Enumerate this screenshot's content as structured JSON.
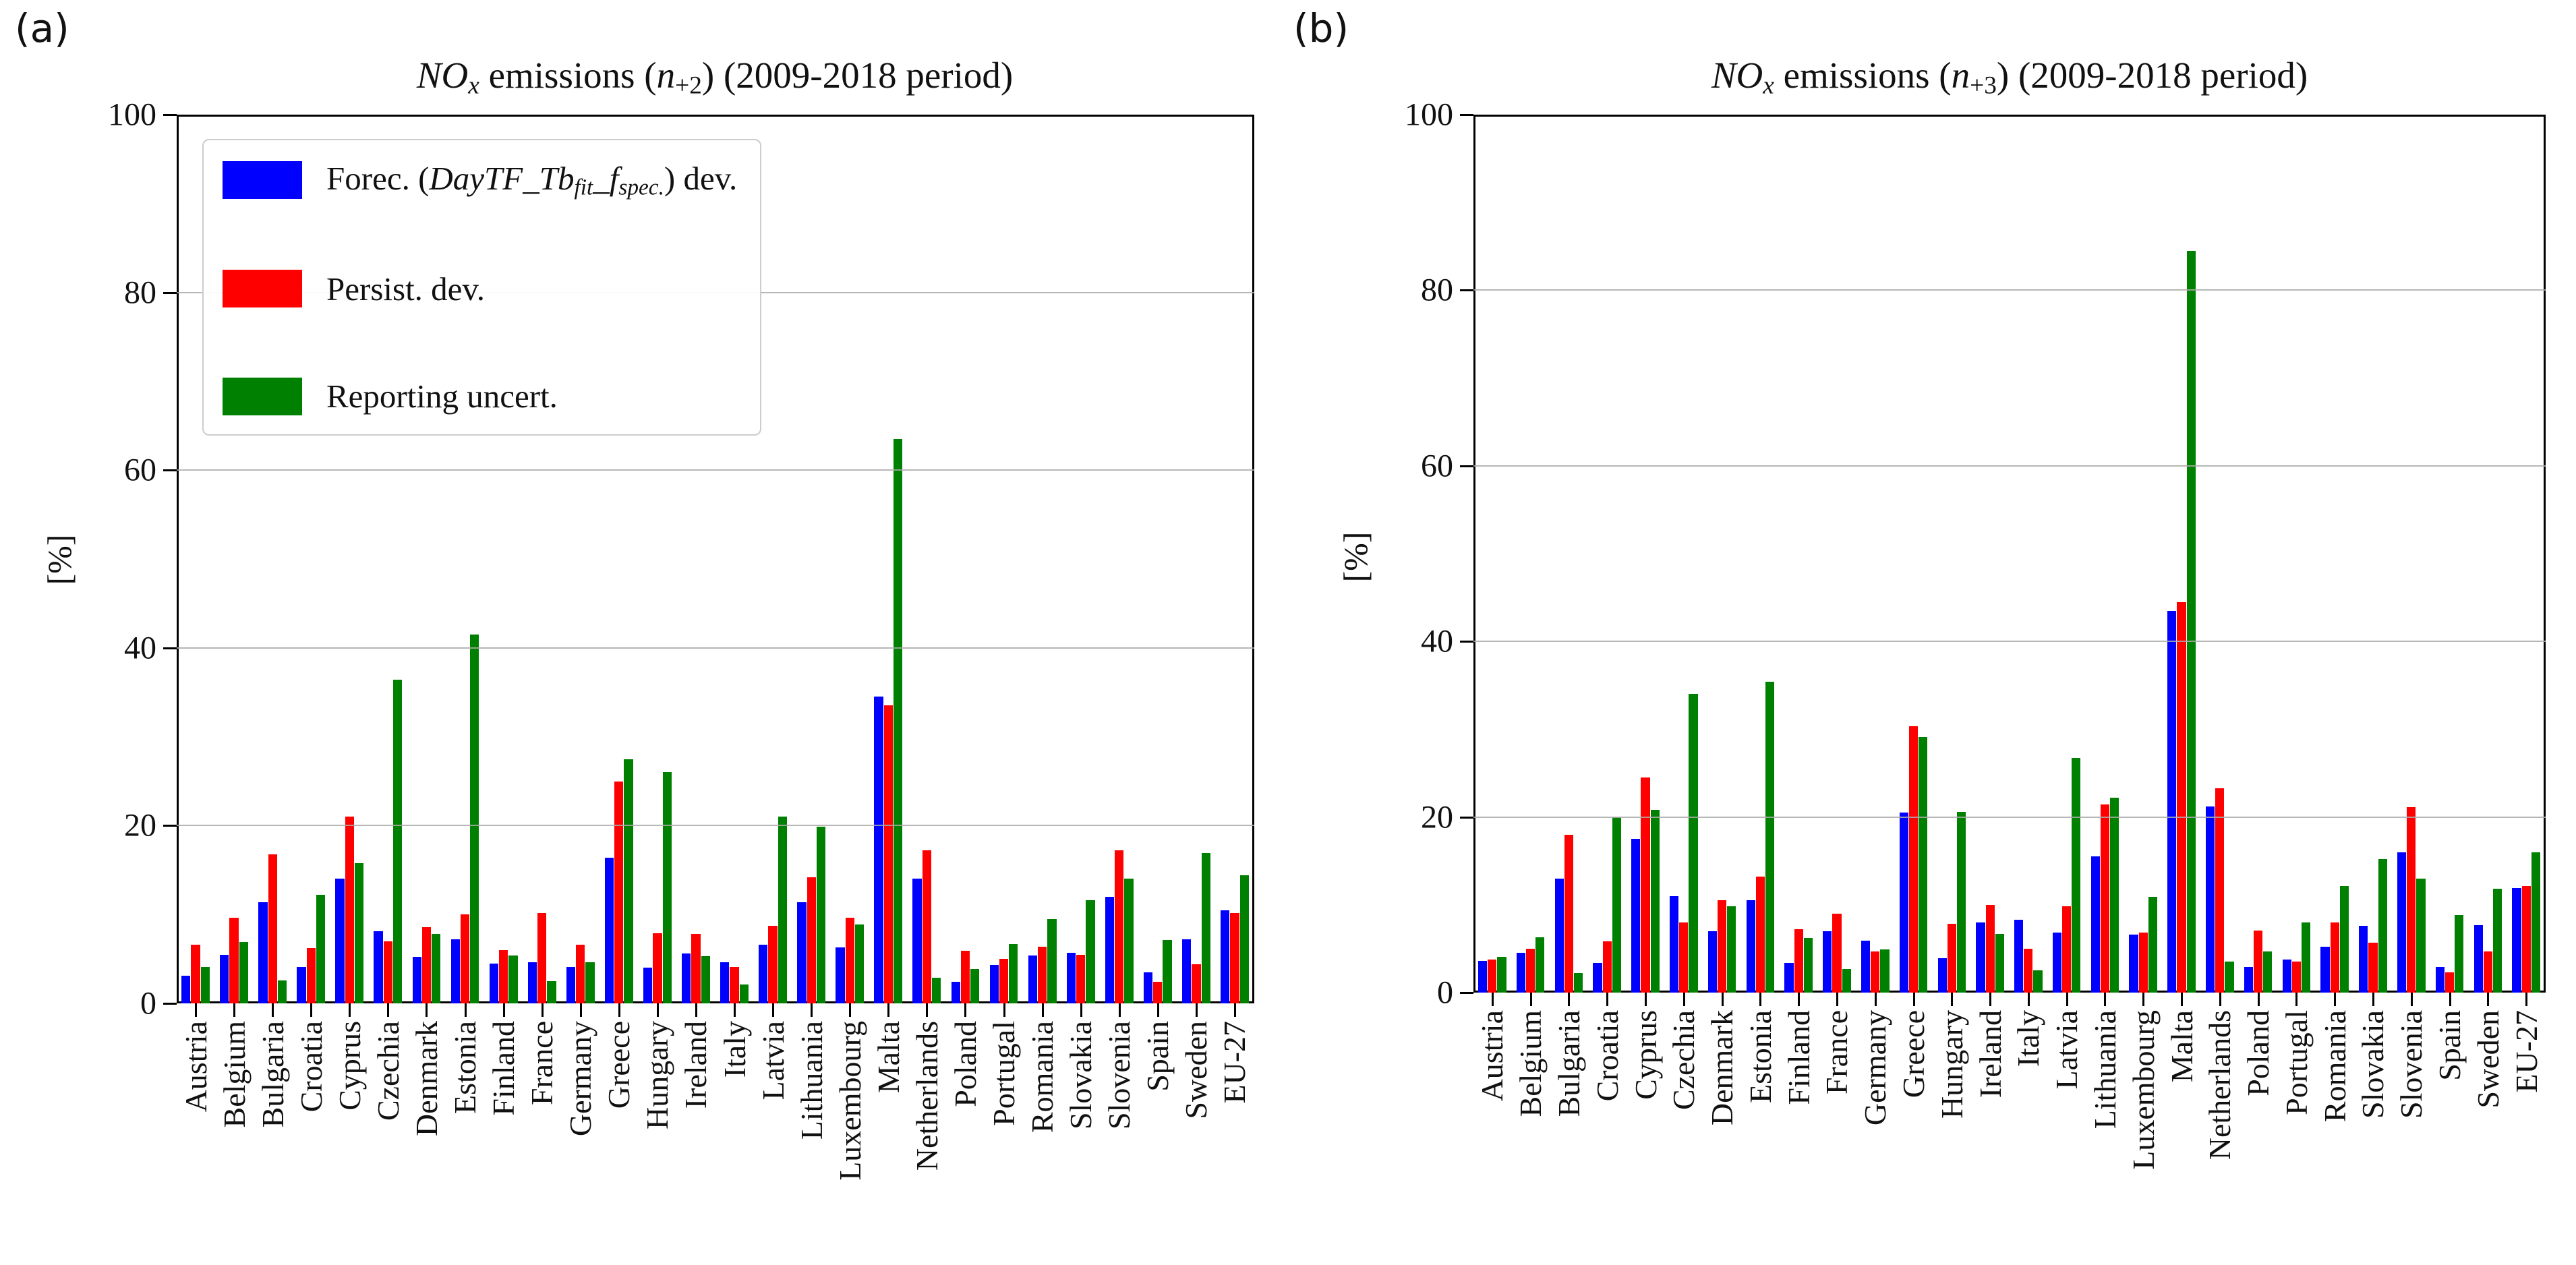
{
  "figure": {
    "background": "#ffffff",
    "panel_labels": [
      "(a)",
      "(b)"
    ]
  },
  "colors": {
    "forecast_blue": "#0000ff",
    "persistence_red": "#ff0000",
    "reporting_green": "#008000",
    "grid_gray": "#aaaaaa",
    "axis_black": "#000000"
  },
  "chart_data": [
    {
      "type": "bar",
      "panel_label": "(a)",
      "title": "NOx emissions (n+2) (2009-2018 period)",
      "title_segments": [
        {
          "t": "NO",
          "i": true
        },
        {
          "t": "x",
          "i": true,
          "sub": true
        },
        {
          "t": " emissions (",
          "i": false
        },
        {
          "t": "n",
          "i": true
        },
        {
          "t": "+2",
          "i": false,
          "sub": true
        },
        {
          "t": ") (2009-2018 period)",
          "i": false
        }
      ],
      "ylabel": "[%]",
      "ylim": [
        0,
        100
      ],
      "yticks": [
        0,
        20,
        40,
        60,
        80,
        100
      ],
      "grid": true,
      "legend_position": "upper left",
      "legend_visible": true,
      "categories": [
        "Austria",
        "Belgium",
        "Bulgaria",
        "Croatia",
        "Cyprus",
        "Czechia",
        "Denmark",
        "Estonia",
        "Finland",
        "France",
        "Germany",
        "Greece",
        "Hungary",
        "Ireland",
        "Italy",
        "Latvia",
        "Lithuania",
        "Luxembourg",
        "Malta",
        "Netherlands",
        "Poland",
        "Portugal",
        "Romania",
        "Slovakia",
        "Slovenia",
        "Spain",
        "Sweden",
        "EU-27"
      ],
      "series": [
        {
          "name": "Forec. (DayTF_Tbfit_fspec.) dev.",
          "name_segments": [
            {
              "t": "Forec. (",
              "i": false
            },
            {
              "t": "DayTF_Tb",
              "i": true
            },
            {
              "t": "fit",
              "i": true,
              "sub": true
            },
            {
              "t": "_f",
              "i": true
            },
            {
              "t": "spec.",
              "i": true,
              "sub": true
            },
            {
              "t": ") dev.",
              "i": false
            }
          ],
          "color": "#0000ff",
          "values": [
            3.1,
            5.5,
            11.4,
            4.1,
            14.0,
            8.1,
            5.2,
            7.2,
            4.5,
            4.6,
            4.1,
            16.4,
            4.0,
            5.6,
            4.6,
            6.6,
            11.4,
            6.3,
            34.5,
            14.0,
            2.4,
            4.3,
            5.4,
            5.7,
            12.0,
            3.5,
            7.2,
            10.5
          ]
        },
        {
          "name": "Persist. dev.",
          "name_segments": [
            {
              "t": "Persist. dev.",
              "i": false
            }
          ],
          "color": "#ff0000",
          "values": [
            6.6,
            9.6,
            16.8,
            6.2,
            21.0,
            7.0,
            8.6,
            10.0,
            6.0,
            10.2,
            6.6,
            25.0,
            7.9,
            7.8,
            4.1,
            8.7,
            14.2,
            9.6,
            33.5,
            17.2,
            5.9,
            5.0,
            6.4,
            5.5,
            17.2,
            2.4,
            4.4,
            10.2
          ]
        },
        {
          "name": "Reporting uncert.",
          "name_segments": [
            {
              "t": "Reporting uncert.",
              "i": false
            }
          ],
          "color": "#008000",
          "values": [
            4.1,
            6.9,
            2.6,
            12.2,
            15.8,
            36.4,
            7.8,
            41.5,
            5.4,
            2.5,
            4.6,
            27.5,
            26.0,
            5.3,
            2.1,
            21.0,
            19.9,
            8.9,
            63.5,
            2.9,
            3.9,
            6.7,
            9.5,
            11.6,
            14.0,
            7.1,
            16.9,
            14.4
          ]
        }
      ]
    },
    {
      "type": "bar",
      "panel_label": "(b)",
      "title": "NOx emissions (n+3) (2009-2018 period)",
      "title_segments": [
        {
          "t": "NO",
          "i": true
        },
        {
          "t": "x",
          "i": true,
          "sub": true
        },
        {
          "t": " emissions (",
          "i": false
        },
        {
          "t": "n",
          "i": true
        },
        {
          "t": "+3",
          "i": false,
          "sub": true
        },
        {
          "t": ") (2009-2018 period)",
          "i": false
        }
      ],
      "ylabel": "[%]",
      "ylim": [
        0,
        100
      ],
      "yticks": [
        0,
        20,
        40,
        60,
        80,
        100
      ],
      "grid": true,
      "legend_position": "none",
      "legend_visible": false,
      "categories": [
        "Austria",
        "Belgium",
        "Bulgaria",
        "Croatia",
        "Cyprus",
        "Czechia",
        "Denmark",
        "Estonia",
        "Finland",
        "France",
        "Germany",
        "Greece",
        "Hungary",
        "Ireland",
        "Italy",
        "Latvia",
        "Lithuania",
        "Luxembourg",
        "Malta",
        "Netherlands",
        "Poland",
        "Portugal",
        "Romania",
        "Slovakia",
        "Slovenia",
        "Spain",
        "Sweden",
        "EU-27"
      ],
      "series": [
        {
          "name": "Forec. (DayTF_Tbfit_fspec.) dev.",
          "name_segments": [
            {
              "t": "Forec. (",
              "i": false
            },
            {
              "t": "DayTF_Tb",
              "i": true
            },
            {
              "t": "fit",
              "i": true,
              "sub": true
            },
            {
              "t": "_f",
              "i": true
            },
            {
              "t": "spec.",
              "i": true,
              "sub": true
            },
            {
              "t": ") dev.",
              "i": false
            }
          ],
          "color": "#0000ff",
          "values": [
            3.6,
            4.5,
            13.0,
            3.4,
            17.5,
            11.0,
            7.0,
            10.5,
            3.4,
            7.0,
            5.9,
            20.5,
            3.9,
            8.0,
            8.3,
            6.8,
            15.5,
            6.6,
            43.5,
            21.2,
            2.9,
            3.8,
            5.2,
            7.6,
            16.0,
            2.9,
            7.7,
            11.9
          ]
        },
        {
          "name": "Persist. dev.",
          "name_segments": [
            {
              "t": "Persist. dev.",
              "i": false
            }
          ],
          "color": "#ff0000",
          "values": [
            3.8,
            5.0,
            18.0,
            5.8,
            24.5,
            8.0,
            10.5,
            13.2,
            7.2,
            9.0,
            4.7,
            30.3,
            7.8,
            10.0,
            5.0,
            9.8,
            21.4,
            6.8,
            44.5,
            23.3,
            7.1,
            3.5,
            8.0,
            5.7,
            21.1,
            2.3,
            4.7,
            12.1
          ]
        },
        {
          "name": "Reporting uncert.",
          "name_segments": [
            {
              "t": "Reporting uncert.",
              "i": false
            }
          ],
          "color": "#008000",
          "values": [
            4.1,
            6.3,
            2.2,
            20.0,
            20.8,
            34.0,
            9.8,
            35.4,
            6.2,
            2.7,
            4.9,
            29.1,
            20.6,
            6.7,
            2.5,
            26.7,
            22.2,
            10.9,
            84.5,
            3.5,
            4.7,
            8.0,
            12.1,
            15.2,
            13.0,
            8.8,
            11.8,
            16.0
          ]
        }
      ]
    }
  ]
}
